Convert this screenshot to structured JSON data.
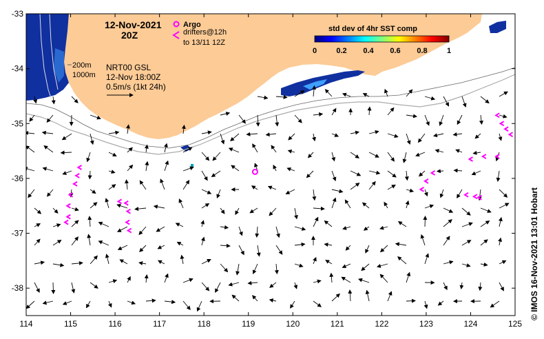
{
  "map": {
    "lon_range": [
      114,
      125
    ],
    "lat_range": [
      -38.5,
      -33
    ],
    "x_ticks": [
      "114",
      "115",
      "116",
      "117",
      "118",
      "119",
      "120",
      "121",
      "122",
      "123",
      "124",
      "125"
    ],
    "y_ticks": [
      "-33",
      "-34",
      "-35",
      "-36",
      "-37",
      "-38"
    ],
    "land_color": "#fccb96",
    "ocean_color": "#ffffff"
  },
  "header": {
    "date": "12-Nov-2021",
    "time": "20Z"
  },
  "legend": {
    "argo_label": "Argo",
    "argo_color": "#ff00ff",
    "drifters_line1": "drifters@12h",
    "drifters_line2": "to 13/11 12Z",
    "drifter_color": "#ff00ff"
  },
  "colorbar": {
    "title": "std dev of 4hr SST comp",
    "ticks": [
      "0",
      "0.2",
      "0.4",
      "0.6",
      "0.8",
      "1"
    ]
  },
  "annotations": {
    "isobath_200": "200m",
    "isobath_1000": "1000m",
    "product": "NRT00 GSL",
    "product_time": "12-Nov 18:00Z",
    "scale_line1": "0.5m/s (1kt 24h)"
  },
  "credit": "© IMOS 16-Nov-2021 13:01 Hobart",
  "argo_floats": [
    {
      "lon": 119.15,
      "lat": -35.88
    }
  ],
  "drifter_tracks": [
    {
      "points": [
        [
          115.2,
          -35.8
        ],
        [
          115.15,
          -35.95
        ],
        [
          115.1,
          -36.1
        ],
        [
          115.0,
          -36.3
        ],
        [
          114.95,
          -36.5
        ],
        [
          114.95,
          -36.7
        ],
        [
          114.9,
          -36.8
        ]
      ]
    },
    {
      "points": [
        [
          116.1,
          -36.42
        ],
        [
          116.25,
          -36.45
        ],
        [
          116.3,
          -36.6
        ],
        [
          116.28,
          -36.8
        ],
        [
          116.32,
          -36.95
        ]
      ]
    },
    {
      "points": [
        [
          122.9,
          -36.2
        ],
        [
          123.0,
          -36.05
        ],
        [
          123.15,
          -35.9
        ]
      ]
    },
    {
      "points": [
        [
          123.9,
          -36.3
        ],
        [
          124.1,
          -36.33
        ],
        [
          124.2,
          -36.35
        ]
      ]
    },
    {
      "points": [
        [
          124.0,
          -35.65
        ],
        [
          124.3,
          -35.6
        ],
        [
          124.6,
          -35.6
        ]
      ]
    },
    {
      "points": [
        [
          124.6,
          -34.85
        ],
        [
          124.7,
          -35.0
        ],
        [
          124.8,
          -35.1
        ],
        [
          124.9,
          -35.2
        ]
      ]
    }
  ]
}
